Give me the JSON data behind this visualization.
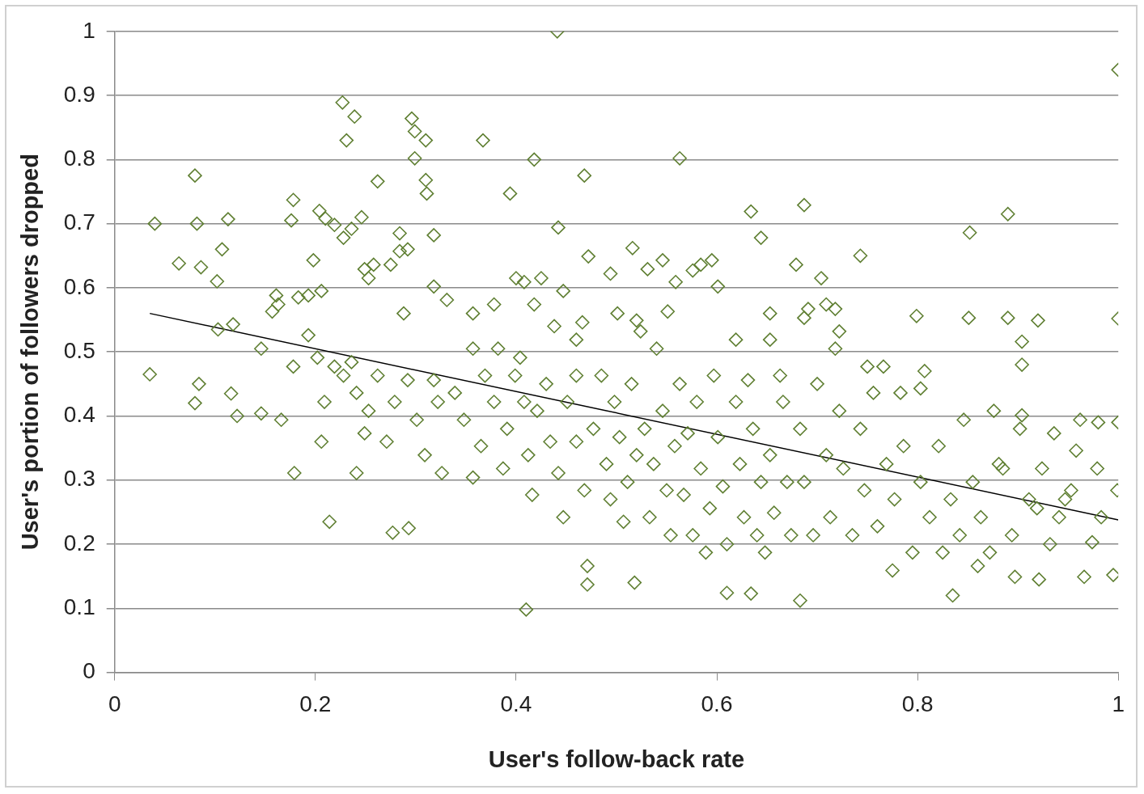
{
  "chart_data": {
    "type": "scatter",
    "xlabel": "User's follow-back rate",
    "ylabel": "User's portion of followers dropped",
    "xlim": [
      0,
      1
    ],
    "ylim": [
      0,
      1
    ],
    "xticks": [
      0,
      0.2,
      0.4,
      0.6,
      0.8,
      1
    ],
    "yticks": [
      0,
      0.1,
      0.2,
      0.3,
      0.4,
      0.5,
      0.6,
      0.7,
      0.8,
      0.9,
      1
    ],
    "grid": "y",
    "legend": false,
    "marker": "diamond",
    "series": [
      {
        "color": "#5f7f32",
        "x": [
          0.035,
          0.04,
          0.064,
          0.08,
          0.082,
          0.086,
          0.084,
          0.08,
          0.102,
          0.107,
          0.113,
          0.103,
          0.116,
          0.122,
          0.118,
          0.146,
          0.178,
          0.178,
          0.176,
          0.179,
          0.166,
          0.163,
          0.204,
          0.21,
          0.214,
          0.227,
          0.231,
          0.239,
          0.241,
          0.246,
          0.262,
          0.277,
          0.296,
          0.299,
          0.299,
          0.31,
          0.31,
          0.311,
          0.318,
          0.293,
          0.367,
          0.394,
          0.418,
          0.441,
          0.442,
          0.468,
          0.447,
          0.41,
          0.471,
          0.471,
          0.516,
          0.563,
          0.531,
          0.634,
          0.644,
          0.687,
          0.679,
          0.743,
          0.683,
          0.61,
          0.634,
          0.518,
          0.799,
          0.852,
          0.89,
          0.851,
          0.89,
          0.904,
          0.92,
          1.0,
          1.0,
          1.0,
          0.98,
          0.962,
          0.999,
          0.995,
          0.966,
          0.936,
          0.921,
          0.897,
          0.86,
          0.835,
          0.775,
          0.974,
          0.947,
          0.919,
          0.885,
          0.904,
          0.904,
          0.876,
          0.807,
          0.803,
          0.783,
          0.766,
          0.75,
          0.718,
          0.709,
          0.704,
          0.718,
          0.722,
          0.687,
          0.691,
          0.663,
          0.653,
          0.653,
          0.619,
          0.601,
          0.595,
          0.584,
          0.576,
          0.546,
          0.559,
          0.551,
          0.54,
          0.524,
          0.52,
          0.494,
          0.501,
          0.472,
          0.466,
          0.46,
          0.438,
          0.425,
          0.408,
          0.4,
          0.418,
          0.378,
          0.357,
          0.331,
          0.318,
          0.288,
          0.284,
          0.292,
          0.284,
          0.275,
          0.258,
          0.249,
          0.253,
          0.236,
          0.228,
          0.219,
          0.198,
          0.206,
          0.193,
          0.183,
          0.161,
          0.157,
          0.146,
          0.193,
          0.202,
          0.209,
          0.206,
          0.219,
          0.228,
          0.236,
          0.241,
          0.249,
          0.253,
          0.262,
          0.271,
          0.279,
          0.292,
          0.301,
          0.309,
          0.318,
          0.322,
          0.326,
          0.339,
          0.348,
          0.357,
          0.357,
          0.365,
          0.369,
          0.378,
          0.382,
          0.387,
          0.391,
          0.399,
          0.404,
          0.408,
          0.412,
          0.416,
          0.421,
          0.43,
          0.434,
          0.442,
          0.447,
          0.451,
          0.46,
          0.46,
          0.468,
          0.477,
          0.485,
          0.49,
          0.494,
          0.498,
          0.503,
          0.507,
          0.511,
          0.515,
          0.52,
          0.528,
          0.533,
          0.537,
          0.546,
          0.55,
          0.554,
          0.558,
          0.563,
          0.567,
          0.571,
          0.576,
          0.58,
          0.584,
          0.589,
          0.593,
          0.597,
          0.601,
          0.606,
          0.61,
          0.619,
          0.623,
          0.627,
          0.631,
          0.636,
          0.64,
          0.644,
          0.648,
          0.653,
          0.657,
          0.666,
          0.67,
          0.674,
          0.683,
          0.687,
          0.696,
          0.7,
          0.709,
          0.713,
          0.722,
          0.726,
          0.735,
          0.743,
          0.747,
          0.756,
          0.76,
          0.769,
          0.777,
          0.786,
          0.795,
          0.803,
          0.812,
          0.821,
          0.825,
          0.833,
          0.842,
          0.846,
          0.855,
          0.863,
          0.872,
          0.881,
          0.894,
          0.902,
          0.911,
          0.924,
          0.932,
          0.941,
          0.953,
          0.958,
          0.979,
          0.983
        ],
        "values": [
          0.465,
          0.7,
          0.638,
          0.775,
          0.7,
          0.632,
          0.45,
          0.42,
          0.61,
          0.66,
          0.707,
          0.535,
          0.435,
          0.4,
          0.543,
          0.404,
          0.477,
          0.737,
          0.705,
          0.311,
          0.394,
          0.574,
          0.72,
          0.708,
          0.235,
          0.889,
          0.83,
          0.867,
          0.311,
          0.71,
          0.766,
          0.218,
          0.864,
          0.802,
          0.844,
          0.83,
          0.768,
          0.747,
          0.682,
          0.225,
          0.83,
          0.747,
          0.8,
          1.0,
          0.694,
          0.775,
          0.595,
          0.098,
          0.166,
          0.137,
          0.662,
          0.802,
          0.629,
          0.719,
          0.678,
          0.729,
          0.636,
          0.65,
          0.112,
          0.124,
          0.123,
          0.14,
          0.556,
          0.686,
          0.715,
          0.553,
          0.553,
          0.516,
          0.549,
          0.94,
          0.552,
          0.39,
          0.39,
          0.394,
          0.284,
          0.152,
          0.149,
          0.373,
          0.145,
          0.149,
          0.166,
          0.12,
          0.159,
          0.203,
          0.27,
          0.256,
          0.318,
          0.48,
          0.401,
          0.408,
          0.47,
          0.443,
          0.436,
          0.477,
          0.477,
          0.567,
          0.574,
          0.615,
          0.505,
          0.532,
          0.553,
          0.567,
          0.463,
          0.56,
          0.519,
          0.519,
          0.602,
          0.643,
          0.636,
          0.627,
          0.643,
          0.609,
          0.563,
          0.505,
          0.532,
          0.549,
          0.622,
          0.56,
          0.649,
          0.546,
          0.519,
          0.54,
          0.615,
          0.609,
          0.615,
          0.574,
          0.574,
          0.56,
          0.581,
          0.602,
          0.56,
          0.657,
          0.66,
          0.685,
          0.636,
          0.636,
          0.629,
          0.615,
          0.692,
          0.678,
          0.698,
          0.643,
          0.595,
          0.588,
          0.585,
          0.588,
          0.563,
          0.505,
          0.526,
          0.491,
          0.422,
          0.36,
          0.477,
          0.463,
          0.484,
          0.436,
          0.373,
          0.408,
          0.463,
          0.36,
          0.422,
          0.456,
          0.394,
          0.339,
          0.456,
          0.422,
          0.311,
          0.436,
          0.394,
          0.304,
          0.505,
          0.353,
          0.463,
          0.422,
          0.505,
          0.318,
          0.38,
          0.463,
          0.491,
          0.422,
          0.339,
          0.277,
          0.408,
          0.45,
          0.36,
          0.311,
          0.242,
          0.422,
          0.463,
          0.36,
          0.284,
          0.38,
          0.463,
          0.325,
          0.27,
          0.422,
          0.367,
          0.235,
          0.297,
          0.45,
          0.339,
          0.38,
          0.242,
          0.325,
          0.408,
          0.284,
          0.214,
          0.353,
          0.45,
          0.277,
          0.373,
          0.214,
          0.422,
          0.318,
          0.187,
          0.256,
          0.463,
          0.367,
          0.29,
          0.2,
          0.422,
          0.325,
          0.242,
          0.456,
          0.38,
          0.214,
          0.297,
          0.187,
          0.339,
          0.249,
          0.422,
          0.297,
          0.214,
          0.38,
          0.297,
          0.214,
          0.45,
          0.339,
          0.242,
          0.408,
          0.318,
          0.214,
          0.38,
          0.284,
          0.436,
          0.228,
          0.325,
          0.27,
          0.353,
          0.187,
          0.297,
          0.242,
          0.353,
          0.187,
          0.27,
          0.214,
          0.394,
          0.297,
          0.242,
          0.187,
          0.325,
          0.214,
          0.38,
          0.27,
          0.318,
          0.2,
          0.242,
          0.284,
          0.346,
          0.318,
          0.242
        ]
      },
      {
        "type": "line",
        "marker": "none",
        "color": "#000000",
        "x": [
          0.035,
          1
        ],
        "values": [
          0.56,
          0.238
        ]
      }
    ]
  }
}
